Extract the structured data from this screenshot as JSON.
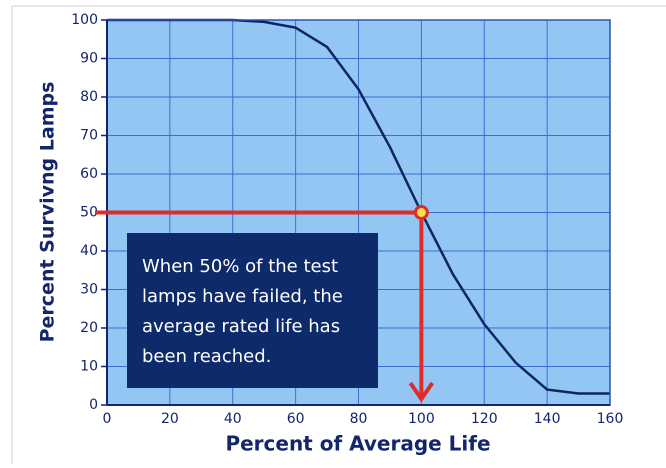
{
  "chart_data": {
    "type": "line",
    "xlabel": "Percent of Average Life",
    "ylabel": "Percent Survivng Lamps",
    "series": [
      {
        "name": "Surviving lamps",
        "color": "#0d2466",
        "x": [
          0,
          40,
          50,
          60,
          70,
          80,
          90,
          100,
          110,
          120,
          130,
          140,
          150,
          160
        ],
        "values": [
          100,
          100,
          99.5,
          98,
          93,
          82,
          67,
          50,
          34,
          21,
          11,
          4,
          3,
          3
        ]
      }
    ],
    "xlim": [
      0,
      160
    ],
    "xticks": [
      0,
      20,
      40,
      60,
      80,
      100,
      120,
      140,
      160
    ],
    "ylim": [
      0,
      100
    ],
    "yticks": [
      0,
      10,
      20,
      30,
      40,
      50,
      60,
      70,
      80,
      90,
      100
    ],
    "grid": true,
    "highlight": {
      "x": 100,
      "y": 50,
      "color": "#e02b2b"
    },
    "annotation": [
      "When 50% of the test",
      "lamps have failed, the",
      "average rated life has",
      "been reached."
    ]
  }
}
